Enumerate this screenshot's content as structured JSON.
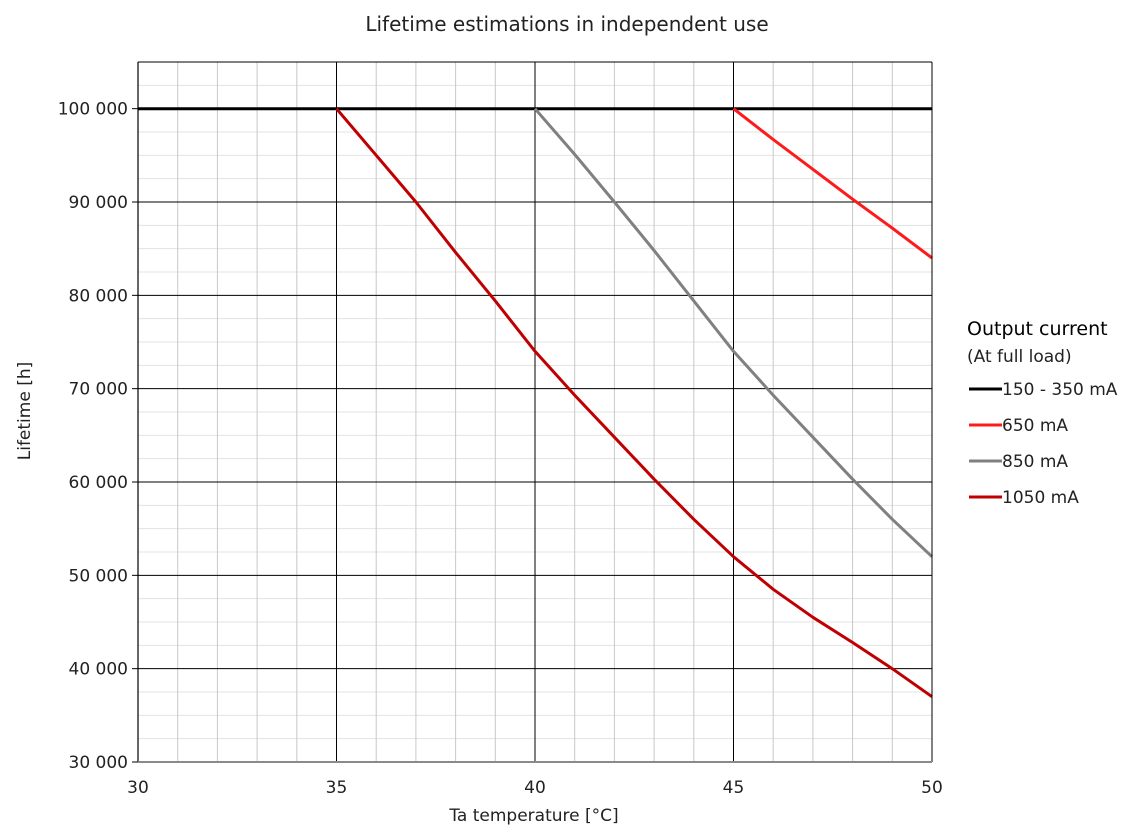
{
  "chart_data": {
    "type": "line",
    "title": "Lifetime estimations in independent use",
    "xlabel": "Ta temperature [°C]",
    "ylabel": "Lifetime [h]",
    "xlim": [
      30,
      50
    ],
    "ylim": [
      30000,
      105000
    ],
    "x_ticks": [
      "30",
      "35",
      "40",
      "45",
      "50"
    ],
    "y_ticks": [
      "30 000",
      "40 000",
      "50 000",
      "60 000",
      "70 000",
      "80 000",
      "90 000",
      "100 000"
    ],
    "grid": true,
    "legend": {
      "title": "Output current",
      "subtitle": "(At full load)",
      "placement": "right"
    },
    "series": [
      {
        "name": "150 - 350 mA",
        "color": "#000000",
        "points": [
          [
            30,
            100000
          ],
          [
            50,
            100000
          ]
        ]
      },
      {
        "name": "650 mA",
        "color": "#ff1a1a",
        "points": [
          [
            45,
            100000
          ],
          [
            46,
            96700
          ],
          [
            47,
            93500
          ],
          [
            48,
            90300
          ],
          [
            49,
            87200
          ],
          [
            50,
            84000
          ]
        ]
      },
      {
        "name": "850 mA",
        "color": "#808080",
        "points": [
          [
            40,
            100000
          ],
          [
            41,
            95100
          ],
          [
            42,
            90000
          ],
          [
            43,
            84800
          ],
          [
            44,
            79400
          ],
          [
            45,
            74000
          ],
          [
            46,
            69300
          ],
          [
            47,
            64800
          ],
          [
            48,
            60300
          ],
          [
            49,
            56000
          ],
          [
            50,
            52000
          ]
        ]
      },
      {
        "name": "1050 mA",
        "color": "#c00000",
        "points": [
          [
            35,
            100000
          ],
          [
            36,
            95000
          ],
          [
            37,
            90000
          ],
          [
            38,
            84600
          ],
          [
            39,
            79400
          ],
          [
            40,
            74000
          ],
          [
            41,
            69300
          ],
          [
            42,
            64800
          ],
          [
            43,
            60300
          ],
          [
            44,
            56000
          ],
          [
            45,
            52000
          ],
          [
            46,
            48500
          ],
          [
            47,
            45500
          ],
          [
            48,
            42800
          ],
          [
            49,
            40000
          ],
          [
            50,
            37000
          ]
        ]
      }
    ]
  }
}
